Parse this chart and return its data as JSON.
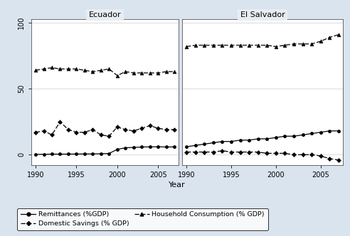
{
  "years": [
    1990,
    1991,
    1992,
    1993,
    1994,
    1995,
    1996,
    1997,
    1998,
    1999,
    2000,
    2001,
    2002,
    2003,
    2004,
    2005,
    2006,
    2007
  ],
  "ecuador": {
    "remittances": [
      0.2,
      0.3,
      0.4,
      0.4,
      0.4,
      0.5,
      0.5,
      0.6,
      0.7,
      0.9,
      4.0,
      5.2,
      5.5,
      5.8,
      5.9,
      6.0,
      5.8,
      5.9
    ],
    "domestic_savings": [
      17,
      18,
      15,
      25,
      19,
      17,
      17,
      19,
      15,
      14,
      21,
      19,
      18,
      20,
      22,
      20,
      19,
      19
    ],
    "household_consumption": [
      64,
      65,
      66,
      65,
      65,
      65,
      64,
      63,
      64,
      65,
      60,
      63,
      62,
      62,
      62,
      62,
      63,
      63
    ]
  },
  "el_salvador": {
    "remittances": [
      6,
      7,
      8,
      9,
      10,
      10,
      11,
      11,
      12,
      12,
      13,
      14,
      14,
      15,
      16,
      17,
      18,
      18
    ],
    "domestic_savings": [
      2,
      2,
      2,
      2,
      3,
      2,
      2,
      2,
      2,
      1,
      1,
      1,
      0,
      0,
      0,
      -1,
      -3,
      -4
    ],
    "household_consumption": [
      82,
      83,
      83,
      83,
      83,
      83,
      83,
      83,
      83,
      83,
      82,
      83,
      84,
      84,
      84,
      86,
      89,
      91
    ]
  },
  "bg_color": "#d9e4ef",
  "panel_bg": "#ffffff",
  "ylim": [
    -8,
    103
  ],
  "yticks": [
    0,
    50,
    100
  ],
  "xticks": [
    1990,
    1995,
    2000,
    2005
  ],
  "xlabel": "Year",
  "panels": [
    "Ecuador",
    "El Salvador"
  ]
}
